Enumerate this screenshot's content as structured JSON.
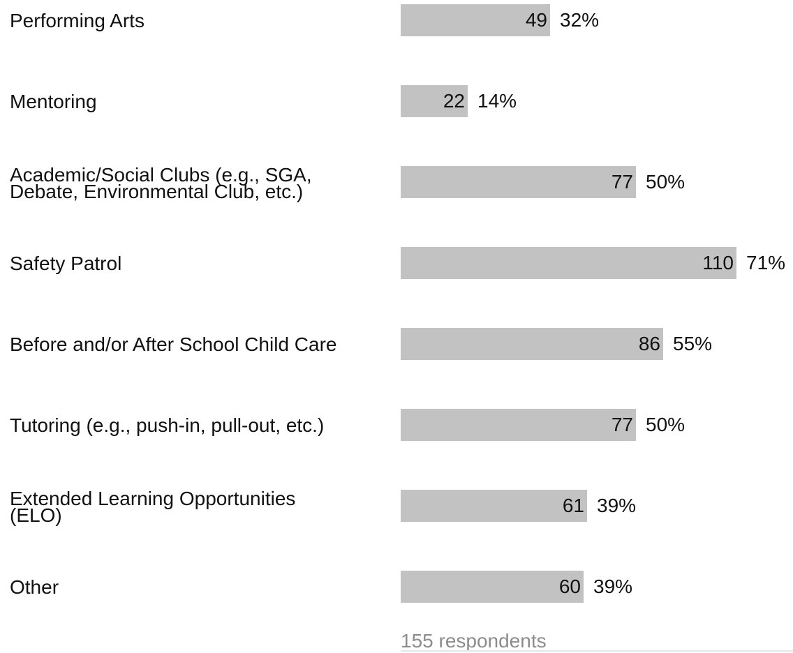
{
  "chart_data": {
    "type": "bar",
    "orientation": "horizontal",
    "categories": [
      "Performing Arts",
      "Mentoring",
      "Academic/Social Clubs (e.g., SGA, Debate, Environmental Club, etc.)",
      "Safety Patrol",
      "Before and/or After School Child Care",
      "Tutoring (e.g., push-in, pull-out, etc.)",
      "Extended Learning Opportunities (ELO)",
      "Other"
    ],
    "values": [
      49,
      22,
      77,
      110,
      86,
      77,
      61,
      60
    ],
    "percent_labels": [
      "32%",
      "14%",
      "50%",
      "71%",
      "55%",
      "50%",
      "39%",
      "39%"
    ],
    "total_label": "155 respondents",
    "colors": {
      "bar": "#c2c2c2",
      "text": "#111111",
      "muted_text": "#8c8c8c"
    },
    "grid": false,
    "legend": "none"
  }
}
